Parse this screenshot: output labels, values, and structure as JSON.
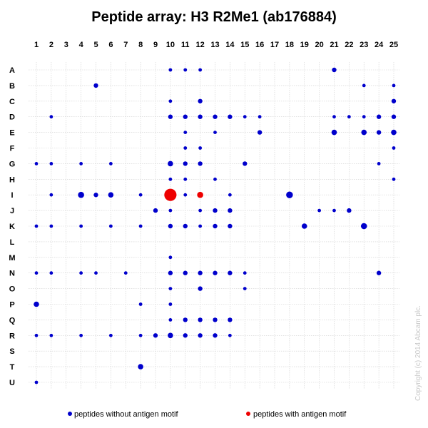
{
  "chart_data": {
    "type": "scatter",
    "title": "Peptide array:  H3 R2Me1 (ab176884)",
    "columns": [
      "1",
      "2",
      "3",
      "4",
      "5",
      "6",
      "7",
      "8",
      "9",
      "10",
      "11",
      "12",
      "13",
      "14",
      "15",
      "16",
      "17",
      "18",
      "19",
      "20",
      "21",
      "22",
      "23",
      "24",
      "25"
    ],
    "rows": [
      "A",
      "B",
      "C",
      "D",
      "E",
      "F",
      "G",
      "H",
      "I",
      "J",
      "K",
      "L",
      "M",
      "N",
      "O",
      "P",
      "Q",
      "R",
      "S",
      "T",
      "U"
    ],
    "grid": true,
    "legend_position": "bottom",
    "series": [
      {
        "name": "peptides without antigen motif",
        "color": "#0000cc",
        "points": [
          {
            "row": "A",
            "col": 10,
            "size": 1
          },
          {
            "row": "A",
            "col": 11,
            "size": 1
          },
          {
            "row": "A",
            "col": 12,
            "size": 1
          },
          {
            "row": "A",
            "col": 21,
            "size": 2
          },
          {
            "row": "B",
            "col": 5,
            "size": 2
          },
          {
            "row": "B",
            "col": 23,
            "size": 1
          },
          {
            "row": "B",
            "col": 25,
            "size": 1
          },
          {
            "row": "C",
            "col": 10,
            "size": 1
          },
          {
            "row": "C",
            "col": 12,
            "size": 2
          },
          {
            "row": "C",
            "col": 25,
            "size": 2
          },
          {
            "row": "D",
            "col": 2,
            "size": 1
          },
          {
            "row": "D",
            "col": 10,
            "size": 2
          },
          {
            "row": "D",
            "col": 11,
            "size": 2
          },
          {
            "row": "D",
            "col": 12,
            "size": 2
          },
          {
            "row": "D",
            "col": 13,
            "size": 2
          },
          {
            "row": "D",
            "col": 14,
            "size": 2
          },
          {
            "row": "D",
            "col": 15,
            "size": 1
          },
          {
            "row": "D",
            "col": 16,
            "size": 1
          },
          {
            "row": "D",
            "col": 21,
            "size": 1
          },
          {
            "row": "D",
            "col": 22,
            "size": 1
          },
          {
            "row": "D",
            "col": 23,
            "size": 1
          },
          {
            "row": "D",
            "col": 24,
            "size": 2
          },
          {
            "row": "D",
            "col": 25,
            "size": 2
          },
          {
            "row": "E",
            "col": 11,
            "size": 1
          },
          {
            "row": "E",
            "col": 13,
            "size": 1
          },
          {
            "row": "E",
            "col": 16,
            "size": 2
          },
          {
            "row": "E",
            "col": 21,
            "size": 3
          },
          {
            "row": "E",
            "col": 23,
            "size": 3
          },
          {
            "row": "E",
            "col": 24,
            "size": 2
          },
          {
            "row": "E",
            "col": 25,
            "size": 3
          },
          {
            "row": "F",
            "col": 11,
            "size": 1
          },
          {
            "row": "F",
            "col": 12,
            "size": 1
          },
          {
            "row": "F",
            "col": 25,
            "size": 1
          },
          {
            "row": "G",
            "col": 1,
            "size": 1
          },
          {
            "row": "G",
            "col": 2,
            "size": 1
          },
          {
            "row": "G",
            "col": 4,
            "size": 1
          },
          {
            "row": "G",
            "col": 6,
            "size": 1
          },
          {
            "row": "G",
            "col": 10,
            "size": 3
          },
          {
            "row": "G",
            "col": 11,
            "size": 2
          },
          {
            "row": "G",
            "col": 12,
            "size": 2
          },
          {
            "row": "G",
            "col": 15,
            "size": 2
          },
          {
            "row": "G",
            "col": 24,
            "size": 1
          },
          {
            "row": "H",
            "col": 10,
            "size": 1
          },
          {
            "row": "H",
            "col": 11,
            "size": 1
          },
          {
            "row": "H",
            "col": 13,
            "size": 1
          },
          {
            "row": "H",
            "col": 25,
            "size": 1
          },
          {
            "row": "I",
            "col": 2,
            "size": 1
          },
          {
            "row": "I",
            "col": 4,
            "size": 4
          },
          {
            "row": "I",
            "col": 5,
            "size": 2
          },
          {
            "row": "I",
            "col": 6,
            "size": 3
          },
          {
            "row": "I",
            "col": 8,
            "size": 1
          },
          {
            "row": "I",
            "col": 11,
            "size": 1
          },
          {
            "row": "I",
            "col": 14,
            "size": 1
          },
          {
            "row": "I",
            "col": 18,
            "size": 5
          },
          {
            "row": "J",
            "col": 9,
            "size": 2
          },
          {
            "row": "J",
            "col": 10,
            "size": 1
          },
          {
            "row": "J",
            "col": 12,
            "size": 1
          },
          {
            "row": "J",
            "col": 13,
            "size": 2
          },
          {
            "row": "J",
            "col": 14,
            "size": 2
          },
          {
            "row": "J",
            "col": 20,
            "size": 1
          },
          {
            "row": "J",
            "col": 21,
            "size": 1
          },
          {
            "row": "J",
            "col": 22,
            "size": 2
          },
          {
            "row": "K",
            "col": 1,
            "size": 1
          },
          {
            "row": "K",
            "col": 2,
            "size": 1
          },
          {
            "row": "K",
            "col": 4,
            "size": 1
          },
          {
            "row": "K",
            "col": 6,
            "size": 1
          },
          {
            "row": "K",
            "col": 8,
            "size": 1
          },
          {
            "row": "K",
            "col": 10,
            "size": 2
          },
          {
            "row": "K",
            "col": 11,
            "size": 2
          },
          {
            "row": "K",
            "col": 12,
            "size": 1
          },
          {
            "row": "K",
            "col": 13,
            "size": 2
          },
          {
            "row": "K",
            "col": 14,
            "size": 2
          },
          {
            "row": "K",
            "col": 19,
            "size": 3
          },
          {
            "row": "K",
            "col": 23,
            "size": 4
          },
          {
            "row": "M",
            "col": 10,
            "size": 1
          },
          {
            "row": "N",
            "col": 1,
            "size": 1
          },
          {
            "row": "N",
            "col": 2,
            "size": 1
          },
          {
            "row": "N",
            "col": 4,
            "size": 1
          },
          {
            "row": "N",
            "col": 5,
            "size": 1
          },
          {
            "row": "N",
            "col": 7,
            "size": 1
          },
          {
            "row": "N",
            "col": 10,
            "size": 2
          },
          {
            "row": "N",
            "col": 11,
            "size": 2
          },
          {
            "row": "N",
            "col": 12,
            "size": 2
          },
          {
            "row": "N",
            "col": 13,
            "size": 2
          },
          {
            "row": "N",
            "col": 14,
            "size": 2
          },
          {
            "row": "N",
            "col": 15,
            "size": 1
          },
          {
            "row": "N",
            "col": 24,
            "size": 2
          },
          {
            "row": "O",
            "col": 10,
            "size": 1
          },
          {
            "row": "O",
            "col": 12,
            "size": 2
          },
          {
            "row": "O",
            "col": 15,
            "size": 1
          },
          {
            "row": "P",
            "col": 1,
            "size": 3
          },
          {
            "row": "P",
            "col": 8,
            "size": 1
          },
          {
            "row": "P",
            "col": 10,
            "size": 1
          },
          {
            "row": "Q",
            "col": 10,
            "size": 1
          },
          {
            "row": "Q",
            "col": 11,
            "size": 2
          },
          {
            "row": "Q",
            "col": 12,
            "size": 2
          },
          {
            "row": "Q",
            "col": 13,
            "size": 2
          },
          {
            "row": "Q",
            "col": 14,
            "size": 2
          },
          {
            "row": "R",
            "col": 1,
            "size": 1
          },
          {
            "row": "R",
            "col": 2,
            "size": 1
          },
          {
            "row": "R",
            "col": 4,
            "size": 1
          },
          {
            "row": "R",
            "col": 6,
            "size": 1
          },
          {
            "row": "R",
            "col": 8,
            "size": 1
          },
          {
            "row": "R",
            "col": 9,
            "size": 2
          },
          {
            "row": "R",
            "col": 10,
            "size": 3
          },
          {
            "row": "R",
            "col": 11,
            "size": 2
          },
          {
            "row": "R",
            "col": 12,
            "size": 2
          },
          {
            "row": "R",
            "col": 13,
            "size": 2
          },
          {
            "row": "R",
            "col": 14,
            "size": 1
          },
          {
            "row": "T",
            "col": 8,
            "size": 3
          },
          {
            "row": "U",
            "col": 1,
            "size": 1
          }
        ]
      },
      {
        "name": "peptides with antigen motif",
        "color": "#ee0000",
        "points": [
          {
            "row": "I",
            "col": 10,
            "size": 18
          },
          {
            "row": "I",
            "col": 12,
            "size": 4
          }
        ]
      }
    ]
  },
  "legend": {
    "without_motif_label": "peptides without antigen motif",
    "with_motif_label": "peptides with antigen motif"
  },
  "copyright": "Copyright (c) 2014 Abcam plc.",
  "colors": {
    "grid": "#cfcfcf",
    "without_motif": "#0000cc",
    "with_motif": "#ee0000",
    "copyright": "#c8c8c8"
  }
}
